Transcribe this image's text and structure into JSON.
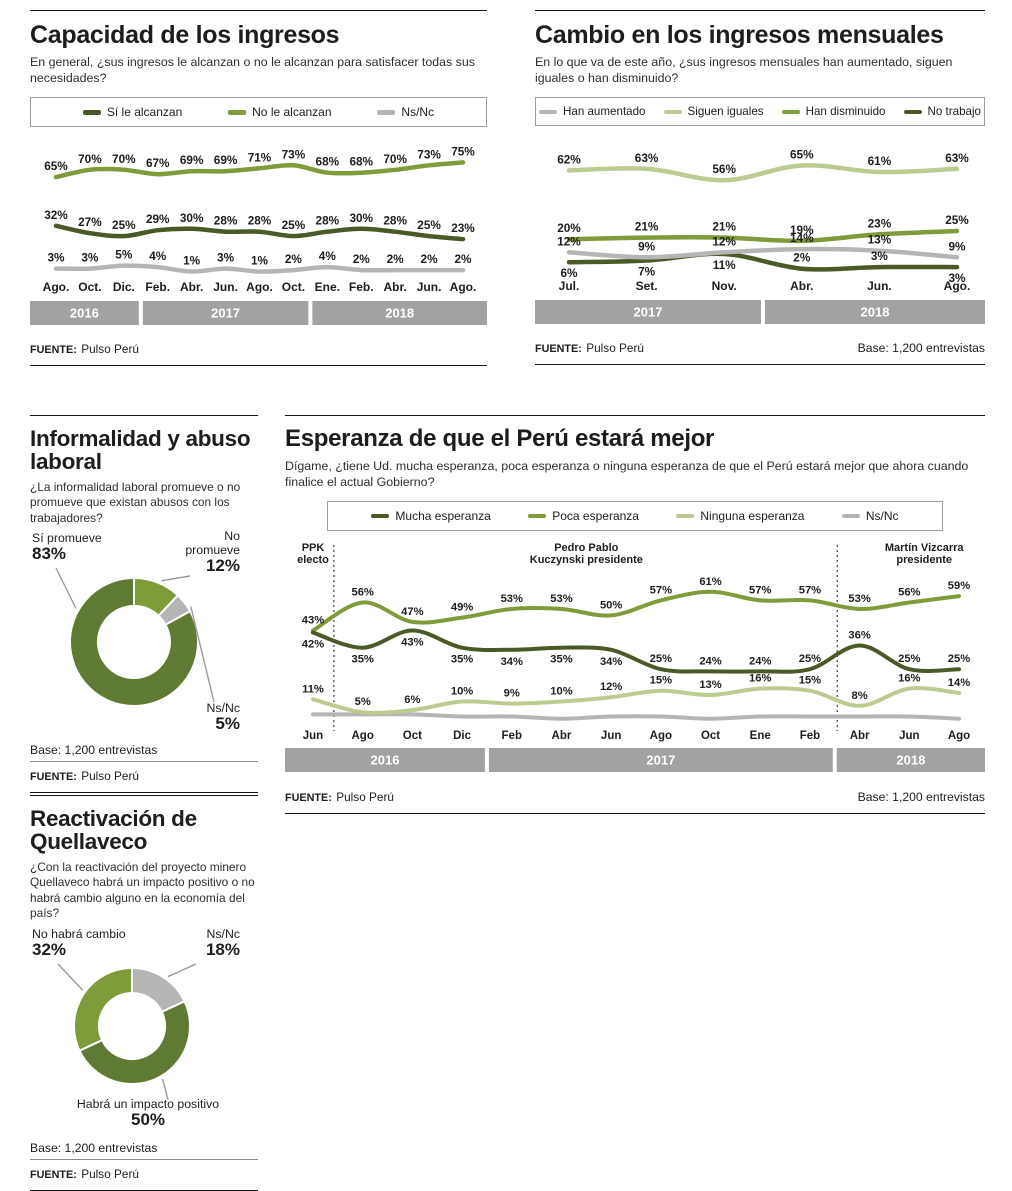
{
  "colors": {
    "dark_green": "#4a5a26",
    "medium_green": "#7f9c3a",
    "light_green": "#bccb90",
    "gray": "#b5b5b5",
    "donut_dark": "#5e7a33",
    "band_gray": "#a2a2a2",
    "text": "#1d1d1b"
  },
  "chart_data": [
    {
      "id": "capacidad",
      "type": "line",
      "title": "Capacidad de los ingresos",
      "subtitle": "En general, ¿sus ingresos le alcanzan o no le alcanzan para satisfacer todas sus necesidades?",
      "categories": [
        "Ago.",
        "Oct.",
        "Dic.",
        "Feb.",
        "Abr.",
        "Jun.",
        "Ago.",
        "Oct.",
        "Ene.",
        "Feb.",
        "Abr.",
        "Jun.",
        "Ago."
      ],
      "year_bands": [
        {
          "label": "2016",
          "count": 3
        },
        {
          "label": "2017",
          "count": 5
        },
        {
          "label": "2018",
          "count": 5
        }
      ],
      "ylim": [
        0,
        80
      ],
      "series": [
        {
          "name": "Sí le alcanzan",
          "color": "dark_green",
          "labels": "above",
          "values": [
            32,
            27,
            25,
            29,
            30,
            28,
            28,
            25,
            28,
            30,
            28,
            25,
            23
          ]
        },
        {
          "name": "No le alcanzan",
          "color": "medium_green",
          "labels": "above",
          "values": [
            65,
            70,
            70,
            67,
            69,
            69,
            71,
            73,
            68,
            68,
            70,
            73,
            75
          ]
        },
        {
          "name": "Ns/Nc",
          "color": "gray",
          "labels": "above",
          "values": [
            3,
            3,
            5,
            4,
            1,
            3,
            1,
            2,
            4,
            2,
            2,
            2,
            2
          ]
        }
      ],
      "fuente_label": "FUENTE:",
      "fuente": "Pulso Perú"
    },
    {
      "id": "cambio",
      "type": "line",
      "title": "Cambio en los ingresos mensuales",
      "subtitle": "En lo que va de este año, ¿sus ingresos mensuales han aumentado, siguen iguales o han disminuido?",
      "categories": [
        "Jul.",
        "Set.",
        "Nov.",
        "Abr.",
        "Jun.",
        "Ago."
      ],
      "year_bands": [
        {
          "label": "2017",
          "count": 3
        },
        {
          "label": "2018",
          "count": 3
        }
      ],
      "ylim": [
        0,
        72
      ],
      "series": [
        {
          "name": "Han aumentado",
          "color": "gray",
          "labels": "above",
          "values": [
            12,
            9,
            12,
            14,
            13,
            9
          ]
        },
        {
          "name": "Siguen iguales",
          "color": "light_green",
          "labels": "above",
          "values": [
            62,
            63,
            56,
            65,
            61,
            63
          ]
        },
        {
          "name": "Han disminuido",
          "color": "medium_green",
          "labels": "above",
          "values": [
            20,
            21,
            21,
            19,
            23,
            25
          ]
        },
        {
          "name": "No trabajo",
          "color": "dark_green",
          "labels": [
            "below",
            "below",
            "below",
            "above",
            "above",
            "below"
          ],
          "values": [
            6,
            7,
            11,
            2,
            3,
            3
          ]
        }
      ],
      "fuente_label": "FUENTE:",
      "fuente": "Pulso Perú",
      "base": "Base: 1,200 entrevistas"
    },
    {
      "id": "informalidad",
      "type": "pie",
      "title": "Informalidad y abuso laboral",
      "subtitle": "¿La informalidad laboral promueve o no promueve que existan abusos con los trabajadores?",
      "slices": [
        {
          "label": "No promueve",
          "value": 12,
          "color": "medium_green"
        },
        {
          "label": "Ns/Nc",
          "value": 5,
          "color": "gray"
        },
        {
          "label": "Sí promueve",
          "value": 83,
          "color": "donut_dark"
        }
      ],
      "base": "Base: 1,200 entrevistas",
      "fuente_label": "FUENTE:",
      "fuente": "Pulso Perú"
    },
    {
      "id": "esperanza",
      "type": "line",
      "title": "Esperanza de que el Perú estará mejor",
      "subtitle": "Dígame, ¿tiene Ud. mucha esperanza, poca esperanza o ninguna esperanza de que el Perú estará mejor que ahora cuando finalice el actual Gobierno?",
      "categories": [
        "Jun",
        "Ago",
        "Oct",
        "Dic",
        "Feb",
        "Abr",
        "Jun",
        "Ago",
        "Oct",
        "Ene",
        "Feb",
        "Abr",
        "Jun",
        "Ago"
      ],
      "year_bands": [
        {
          "label": "2016",
          "count": 4
        },
        {
          "label": "2017",
          "count": 7
        },
        {
          "label": "2018",
          "count": 3
        }
      ],
      "ylim": [
        0,
        66
      ],
      "annotations": [
        {
          "lines": [
            "PPK",
            "electo"
          ],
          "index": 0
        },
        {
          "lines": [
            "Pedro Pablo",
            "Kuczynski presidente"
          ],
          "index": 5.5
        },
        {
          "lines": [
            "Martín Vizcarra",
            "presidente"
          ],
          "index": 12.3
        }
      ],
      "vlines": [
        0.42,
        10.55
      ],
      "series": [
        {
          "name": "Mucha esperanza",
          "color": "dark_green",
          "labels": [
            "below",
            "below",
            "below",
            "below",
            "below",
            "below",
            "below",
            "above",
            "above",
            "above",
            "above",
            "above",
            "above",
            "above"
          ],
          "values": [
            42,
            35,
            43,
            35,
            34,
            35,
            34,
            25,
            24,
            24,
            25,
            36,
            25,
            25
          ]
        },
        {
          "name": "Poca esperanza",
          "color": "medium_green",
          "labels": "above",
          "values": [
            43,
            56,
            47,
            49,
            53,
            53,
            50,
            57,
            61,
            57,
            57,
            53,
            56,
            59
          ]
        },
        {
          "name": "Ninguna esperanza",
          "color": "light_green",
          "labels": "above",
          "values": [
            11,
            5,
            6,
            10,
            9,
            10,
            12,
            15,
            13,
            16,
            15,
            8,
            16,
            14
          ]
        },
        {
          "name": "Ns/Nc",
          "color": "gray",
          "labels": "none",
          "values": [
            4,
            4,
            4,
            3,
            3,
            2,
            3,
            3,
            2,
            3,
            3,
            3,
            3,
            2
          ]
        }
      ],
      "fuente_label": "FUENTE:",
      "fuente": "Pulso Perú",
      "base": "Base: 1,200 entrevistas"
    },
    {
      "id": "quellaveco",
      "type": "pie",
      "title": "Reactivación de Quellaveco",
      "subtitle": "¿Con la reactivación del proyecto minero Quellaveco habrá un impacto positivo o no habrá cambio alguno en la economía del país?",
      "slices": [
        {
          "label": "Ns/Nc",
          "value": 18,
          "color": "gray"
        },
        {
          "label": "Habrá un impacto positivo",
          "value": 50,
          "color": "donut_dark"
        },
        {
          "label": "No habrá cambio",
          "value": 32,
          "color": "medium_green"
        }
      ],
      "base": "Base: 1,200 entrevistas",
      "fuente_label": "FUENTE:",
      "fuente": "Pulso Perú"
    }
  ]
}
